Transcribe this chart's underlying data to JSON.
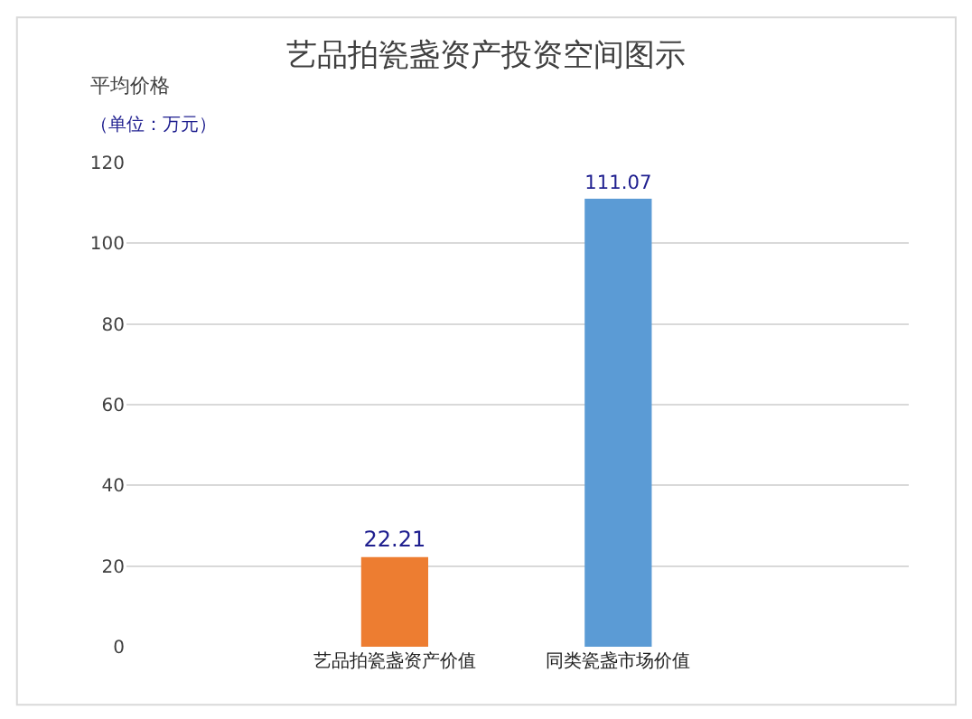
{
  "chart_data": {
    "type": "bar",
    "title": "艺品拍瓷盏资产投资空间图示",
    "ylabel": "平均价格",
    "annotations": [
      "（单位：万元）"
    ],
    "categories": [
      "艺品拍瓷盏资产价值",
      "同类瓷盏市场价值"
    ],
    "values": [
      22.21,
      111.07
    ],
    "colors": [
      "#ed7d31",
      "#5b9bd5"
    ],
    "ylim": [
      0,
      120
    ],
    "yticks": [
      0,
      20,
      40,
      60,
      80,
      100,
      120
    ],
    "grid": "y",
    "data_labels": true
  }
}
